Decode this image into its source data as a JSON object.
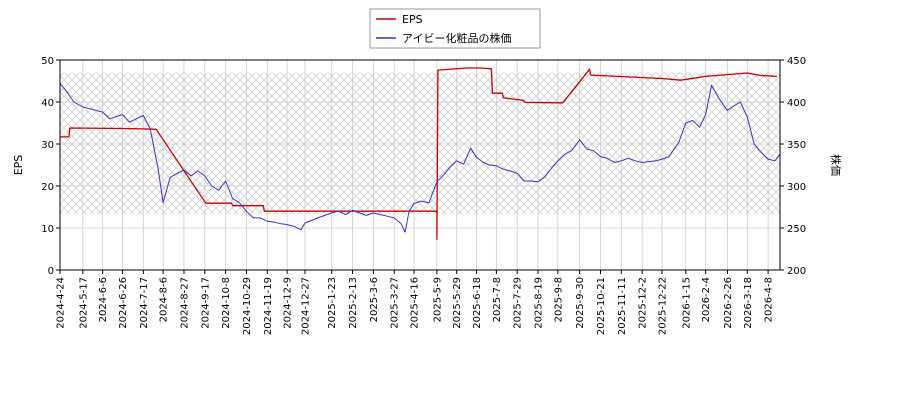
{
  "chart_data": {
    "type": "line",
    "title": "",
    "legend": {
      "placement": "top-center",
      "items": [
        {
          "label": "EPS",
          "color": "#cc0000"
        },
        {
          "label": "アイビー化粧品の株価",
          "color": "#3333cc"
        }
      ]
    },
    "y_left": {
      "label": "EPS",
      "range": [
        0,
        50
      ],
      "ticks": [
        0,
        10,
        20,
        30,
        40,
        50
      ]
    },
    "y_right": {
      "label": "株価",
      "range": [
        200,
        450
      ],
      "ticks": [
        200,
        250,
        300,
        350,
        400,
        450
      ]
    },
    "x_ticks": [
      "2024-4-24",
      "2024-5-17",
      "2024-6-6",
      "2024-6-26",
      "2024-7-17",
      "2024-8-6",
      "2024-8-27",
      "2024-9-17",
      "2024-10-8",
      "2024-10-29",
      "2024-11-19",
      "2024-12-9",
      "2024-12-27",
      "2025-1-23",
      "2025-2-13",
      "2025-3-6",
      "2025-3-27",
      "2025-4-16",
      "2025-5-9",
      "2025-5-29",
      "2025-6-18",
      "2025-7-8",
      "2025-7-29",
      "2025-8-19",
      "2025-9-8",
      "2025-9-30",
      "2025-10-21",
      "2025-11-11",
      "2025-12-2",
      "2025-12-22",
      "2026-1-15",
      "2026-2-4",
      "2026-2-26",
      "2026-3-18",
      "2026-4-8"
    ],
    "grid": true,
    "shaded_band": {
      "y_left_range": [
        13.3,
        47
      ]
    },
    "series": [
      {
        "name": "EPS",
        "axis": "left",
        "color": "#cc0000",
        "x": [
          "2024-4-24",
          "2024-5-3",
          "2024-5-4",
          "2024-6-26",
          "2024-7-17",
          "2024-7-30",
          "2024-9-18",
          "2024-10-14",
          "2024-10-15",
          "2024-11-15",
          "2024-11-16",
          "2025-5-9",
          "2025-5-9",
          "2025-5-10",
          "2025-6-8",
          "2025-6-22",
          "2025-7-3",
          "2025-7-4",
          "2025-7-14",
          "2025-7-15",
          "2025-7-29",
          "2025-8-4",
          "2025-8-6",
          "2025-9-10",
          "2025-9-13",
          "2025-10-10",
          "2025-10-11",
          "2025-12-22",
          "2026-1-10",
          "2026-2-4",
          "2026-3-18",
          "2026-4-1",
          "2026-4-17"
        ],
        "y": [
          31.7,
          31.7,
          33.8,
          33.7,
          33.6,
          33.5,
          15.9,
          15.9,
          15.3,
          15.3,
          14,
          14,
          7.3,
          47.6,
          48.1,
          48.1,
          47.9,
          42.1,
          42.1,
          41,
          40.6,
          40.4,
          39.9,
          39.8,
          39.8,
          47.8,
          46.4,
          45.6,
          45.2,
          46.1,
          46.9,
          46.3,
          46.1
        ]
      },
      {
        "name": "アイビー化粧品の株価",
        "axis": "right",
        "color": "#3333cc",
        "x": [
          "2024-4-24",
          "2024-5-1",
          "2024-5-8",
          "2024-5-17",
          "2024-5-24",
          "2024-6-6",
          "2024-6-13",
          "2024-6-26",
          "2024-7-3",
          "2024-7-17",
          "2024-7-24",
          "2024-8-1",
          "2024-8-6",
          "2024-8-13",
          "2024-8-20",
          "2024-8-27",
          "2024-9-3",
          "2024-9-10",
          "2024-9-17",
          "2024-9-24",
          "2024-10-1",
          "2024-10-8",
          "2024-10-15",
          "2024-10-22",
          "2024-10-29",
          "2024-11-5",
          "2024-11-12",
          "2024-11-19",
          "2024-11-26",
          "2024-12-3",
          "2024-12-9",
          "2024-12-16",
          "2024-12-23",
          "2024-12-27",
          "2025-1-9",
          "2025-1-16",
          "2025-1-23",
          "2025-1-30",
          "2025-2-6",
          "2025-2-13",
          "2025-2-20",
          "2025-2-27",
          "2025-3-6",
          "2025-3-13",
          "2025-3-20",
          "2025-3-27",
          "2025-4-3",
          "2025-4-7",
          "2025-4-11",
          "2025-4-16",
          "2025-4-23",
          "2025-5-1",
          "2025-5-9",
          "2025-5-15",
          "2025-5-22",
          "2025-5-29",
          "2025-6-5",
          "2025-6-12",
          "2025-6-18",
          "2025-6-25",
          "2025-7-1",
          "2025-7-8",
          "2025-7-15",
          "2025-7-22",
          "2025-7-29",
          "2025-8-5",
          "2025-8-12",
          "2025-8-19",
          "2025-8-26",
          "2025-9-2",
          "2025-9-8",
          "2025-9-15",
          "2025-9-22",
          "2025-9-30",
          "2025-10-7",
          "2025-10-14",
          "2025-10-21",
          "2025-10-28",
          "2025-11-4",
          "2025-11-11",
          "2025-11-18",
          "2025-11-25",
          "2025-12-2",
          "2025-12-9",
          "2025-12-16",
          "2025-12-22",
          "2025-12-29",
          "2026-1-8",
          "2026-1-15",
          "2026-1-22",
          "2026-1-29",
          "2026-2-4",
          "2026-2-10",
          "2026-2-17",
          "2026-2-26",
          "2026-3-4",
          "2026-3-11",
          "2026-3-18",
          "2026-3-25",
          "2026-4-1",
          "2026-4-8",
          "2026-4-15",
          "2026-4-20"
        ],
        "y": [
          422,
          412,
          400,
          394,
          392,
          388,
          380,
          385,
          376,
          384,
          368,
          320,
          280,
          310,
          315,
          319,
          312,
          318,
          312,
          300,
          295,
          306,
          285,
          280,
          270,
          262,
          262,
          258,
          257,
          255,
          254,
          252,
          248,
          256,
          262,
          265,
          268,
          270,
          266,
          271,
          268,
          265,
          268,
          266,
          264,
          262,
          255,
          245,
          270,
          279,
          282,
          280,
          305,
          312,
          322,
          330,
          326,
          345,
          334,
          328,
          325,
          324,
          320,
          318,
          315,
          306,
          306,
          305,
          311,
          322,
          330,
          338,
          342,
          355,
          344,
          342,
          335,
          333,
          328,
          330,
          333,
          330,
          328,
          329,
          330,
          332,
          335,
          352,
          375,
          378,
          370,
          385,
          420,
          405,
          390,
          395,
          400,
          382,
          350,
          340,
          332,
          330,
          338
        ]
      }
    ]
  }
}
